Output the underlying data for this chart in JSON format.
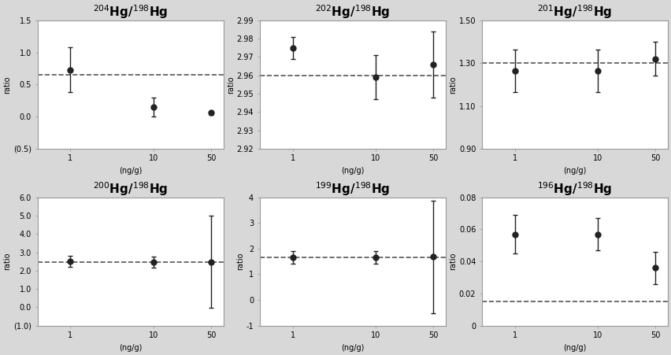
{
  "subplots": [
    {
      "title": "$^{204}$Hg/$^{198}$Hg",
      "ylabel": "ratio",
      "xlabel": "(ng/g)",
      "x": [
        1,
        10,
        50
      ],
      "y": [
        0.73,
        0.15,
        0.06
      ],
      "yerr": [
        0.35,
        0.15,
        0.03
      ],
      "dashed_y": 0.65,
      "ylim": [
        -0.5,
        1.5
      ],
      "yticks": [
        -0.5,
        0.0,
        0.5,
        1.0,
        1.5
      ],
      "ytick_labels": [
        "(0.5)",
        "0.0",
        "0.5",
        "1.0",
        "1.5"
      ]
    },
    {
      "title": "$^{202}$Hg/$^{198}$Hg",
      "ylabel": "ratio",
      "xlabel": "(ng/g)",
      "x": [
        1,
        10,
        50
      ],
      "y": [
        2.975,
        2.959,
        2.966
      ],
      "yerr": [
        0.006,
        0.012,
        0.018
      ],
      "dashed_y": 2.96,
      "ylim": [
        2.92,
        2.99
      ],
      "yticks": [
        2.92,
        2.93,
        2.94,
        2.95,
        2.96,
        2.97,
        2.98,
        2.99
      ],
      "ytick_labels": [
        "2.92",
        "2.93",
        "2.94",
        "2.95",
        "2.96",
        "2.97",
        "2.98",
        "2.99"
      ]
    },
    {
      "title": "$^{201}$Hg/$^{198}$Hg",
      "ylabel": "ratio",
      "xlabel": "(ng/g)",
      "x": [
        1,
        10,
        50
      ],
      "y": [
        1.265,
        1.265,
        1.32
      ],
      "yerr": [
        0.1,
        0.1,
        0.08
      ],
      "dashed_y": 1.3,
      "ylim": [
        0.9,
        1.5
      ],
      "yticks": [
        0.9,
        1.1,
        1.3,
        1.5
      ],
      "ytick_labels": [
        "0.90",
        "1.10",
        "1.30",
        "1.50"
      ]
    },
    {
      "title": "$^{200}$Hg/$^{198}$Hg",
      "ylabel": "ratio",
      "xlabel": "(ng/g)",
      "x": [
        1,
        10,
        50
      ],
      "y": [
        2.5,
        2.48,
        2.48
      ],
      "yerr": [
        0.3,
        0.3,
        2.5
      ],
      "dashed_y": 2.48,
      "ylim": [
        -1.0,
        6.0
      ],
      "yticks": [
        -1.0,
        0.0,
        1.0,
        2.0,
        3.0,
        4.0,
        5.0,
        6.0
      ],
      "ytick_labels": [
        "(1.0)",
        "0.0",
        "1.0",
        "2.0",
        "3.0",
        "4.0",
        "5.0",
        "6.0"
      ]
    },
    {
      "title": "$^{199}$Hg/$^{198}$Hg",
      "ylabel": "ratio",
      "xlabel": "(ng/g)",
      "x": [
        1,
        10,
        50
      ],
      "y": [
        1.65,
        1.65,
        1.68
      ],
      "yerr": [
        0.25,
        0.25,
        2.2
      ],
      "dashed_y": 1.65,
      "ylim": [
        -1,
        4
      ],
      "yticks": [
        -1,
        0,
        1,
        2,
        3,
        4
      ],
      "ytick_labels": [
        "-1",
        "0",
        "1",
        "2",
        "3",
        "4"
      ]
    },
    {
      "title": "$^{196}$Hg/$^{198}$Hg",
      "ylabel": "ratio",
      "xlabel": "(ng/g)",
      "x": [
        1,
        10,
        50
      ],
      "y": [
        0.057,
        0.057,
        0.036
      ],
      "yerr": [
        0.012,
        0.01,
        0.01
      ],
      "dashed_y": 0.015,
      "ylim": [
        0.0,
        0.08
      ],
      "yticks": [
        0.0,
        0.02,
        0.04,
        0.06,
        0.08
      ],
      "ytick_labels": [
        "0",
        "0.02",
        "0.04",
        "0.06",
        "0.08"
      ]
    }
  ],
  "xticks": [
    1,
    10,
    50
  ],
  "xtick_labels": [
    "1",
    "10",
    "50"
  ],
  "marker": "o",
  "marker_color": "#222222",
  "marker_size": 5,
  "dashed_color": "#555555",
  "bg_color": "#d8d8d8",
  "subplot_bg": "#ffffff",
  "font_size": 7,
  "title_font_size": 11,
  "spine_color": "#999999"
}
